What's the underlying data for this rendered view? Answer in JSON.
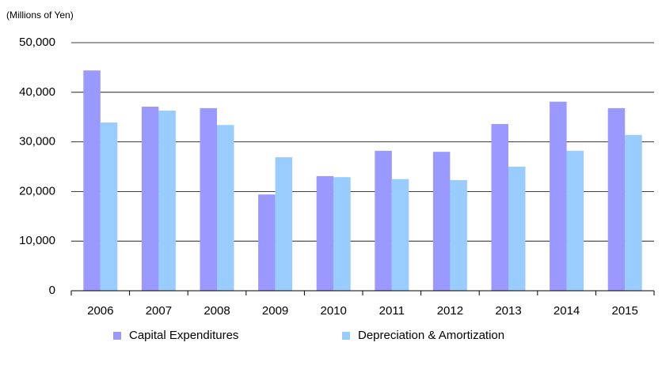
{
  "chart_data": {
    "type": "bar",
    "y_axis_label": "(Millions of Yen)",
    "categories": [
      "2006",
      "2007",
      "2008",
      "2009",
      "2010",
      "2011",
      "2012",
      "2013",
      "2014",
      "2015"
    ],
    "series": [
      {
        "name": "Capital Expenditures",
        "color": "#9999ff",
        "values": [
          44400,
          37100,
          36800,
          19400,
          23100,
          28200,
          28000,
          33600,
          38100,
          36800
        ]
      },
      {
        "name": "Depreciation & Amortization",
        "color": "#99ccff",
        "values": [
          33900,
          36300,
          33400,
          26900,
          22900,
          22500,
          22300,
          25000,
          28200,
          31400
        ]
      }
    ],
    "ylim": [
      0,
      50000
    ],
    "yticks": [
      0,
      {
        "value": 10000,
        "label": "10,000"
      },
      {
        "value": 20000,
        "label": "20,000"
      },
      {
        "value": 30000,
        "label": "30,000"
      },
      {
        "value": 40000,
        "label": "40,000"
      },
      {
        "value": 50000,
        "label": "50,000"
      }
    ],
    "grid": true,
    "legend": "bottom"
  }
}
